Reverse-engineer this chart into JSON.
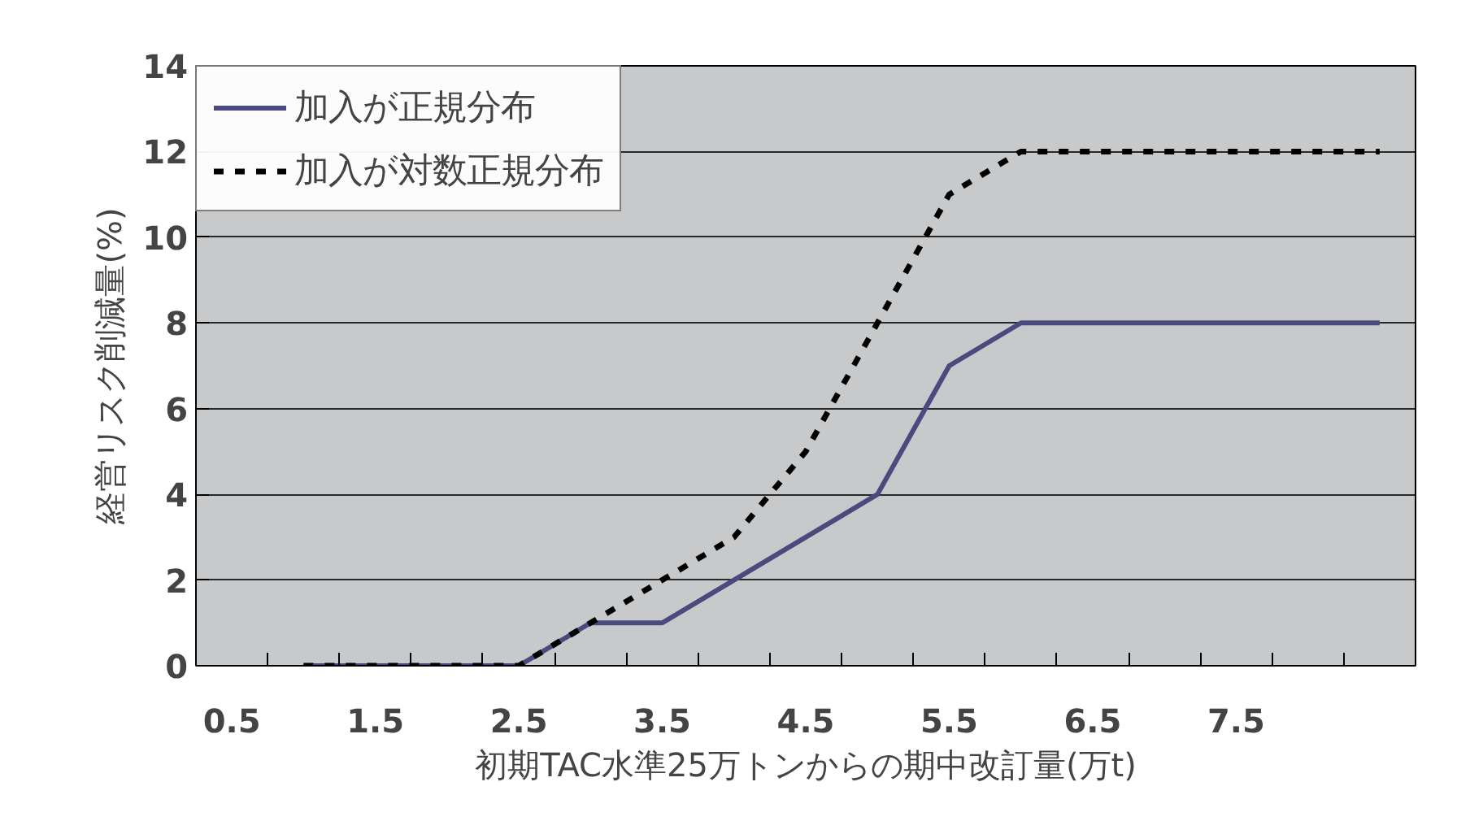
{
  "chart_data": {
    "type": "line",
    "xlabel": "初期TAC水準25万トンからの期中改訂量(万t)",
    "ylabel": "経営リスク削減量(%)",
    "categories": [
      "0.5",
      null,
      "1.5",
      null,
      "2.5",
      null,
      "3.5",
      null,
      "4.5",
      null,
      "5.5",
      null,
      "6.5",
      null,
      "7.5",
      null,
      null
    ],
    "series": [
      {
        "name": "加入が正規分布",
        "color": "#4b4a7e",
        "line_style": "solid",
        "values": [
          null,
          0,
          0,
          0,
          0,
          1,
          1,
          2,
          3,
          4,
          7,
          8,
          8,
          8,
          8,
          8,
          8
        ]
      },
      {
        "name": "加入が対数正規分布",
        "color": "#000000",
        "line_style": "dashed",
        "values": [
          null,
          0,
          0,
          0,
          0,
          1,
          2,
          3,
          5,
          8,
          11,
          12,
          12,
          12,
          12,
          12,
          12
        ]
      }
    ],
    "ylim": [
      0,
      14
    ],
    "yticks": [
      0,
      2,
      4,
      6,
      8,
      10,
      12,
      14
    ],
    "grid": "y",
    "legend": "top left"
  }
}
